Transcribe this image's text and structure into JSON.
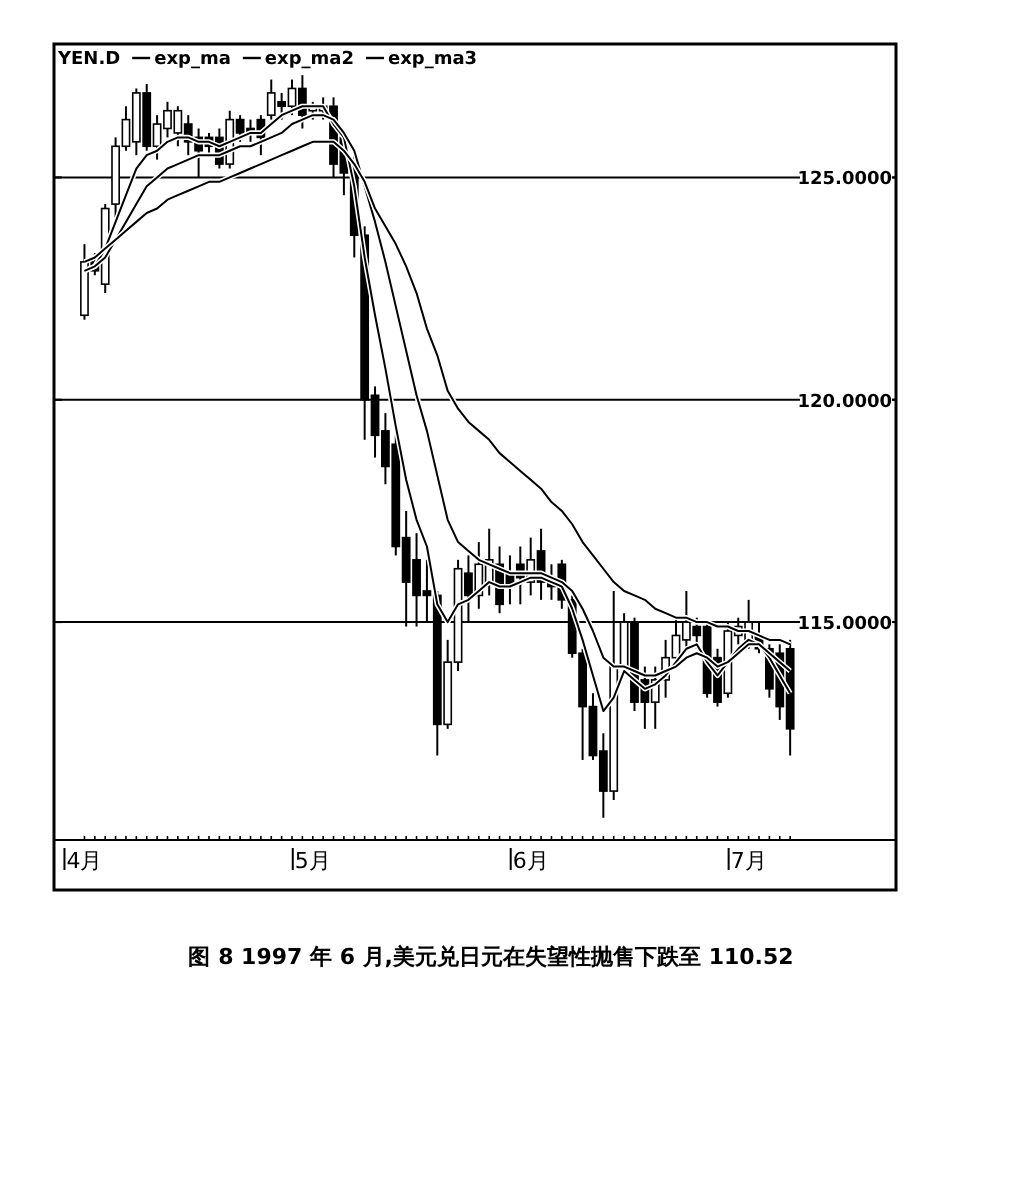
{
  "chart_data": {
    "type": "candlestick",
    "title": "YEN.D",
    "categories": [
      "4月",
      null,
      null,
      null,
      null,
      null,
      null,
      null,
      null,
      null,
      null,
      null,
      null,
      null,
      null,
      null,
      null,
      null,
      null,
      null,
      null,
      null,
      "5月",
      null,
      null,
      null,
      null,
      null,
      null,
      null,
      null,
      null,
      null,
      null,
      null,
      null,
      null,
      null,
      null,
      null,
      null,
      null,
      null,
      "6月",
      null,
      null,
      null,
      null,
      null,
      null,
      null,
      null,
      null,
      null,
      null,
      null,
      null,
      null,
      null,
      null,
      null,
      null,
      null,
      null,
      "7月",
      null,
      null,
      null,
      null
    ],
    "ohlc": [
      [
        121.9,
        123.5,
        121.8,
        123.1
      ],
      [
        123.1,
        123.3,
        122.8,
        122.9
      ],
      [
        122.6,
        124.4,
        122.4,
        124.3
      ],
      [
        124.4,
        125.9,
        124.1,
        125.7
      ],
      [
        125.7,
        126.6,
        125.6,
        126.3
      ],
      [
        125.8,
        127.0,
        125.5,
        126.9
      ],
      [
        126.9,
        127.1,
        125.6,
        125.7
      ],
      [
        125.7,
        126.4,
        125.4,
        126.2
      ],
      [
        126.1,
        126.7,
        125.9,
        126.5
      ],
      [
        126.0,
        126.6,
        125.7,
        126.5
      ],
      [
        126.2,
        126.4,
        125.5,
        125.8
      ],
      [
        125.9,
        126.1,
        125.0,
        125.6
      ],
      [
        125.9,
        126.0,
        125.5,
        125.7
      ],
      [
        125.9,
        126.1,
        125.2,
        125.3
      ],
      [
        125.3,
        126.5,
        125.2,
        126.3
      ],
      [
        126.3,
        126.4,
        125.8,
        126.0
      ],
      [
        126.1,
        126.3,
        125.8,
        126.0
      ],
      [
        126.3,
        126.4,
        125.5,
        125.9
      ],
      [
        126.4,
        127.2,
        126.3,
        126.9
      ],
      [
        126.7,
        126.9,
        126.3,
        126.6
      ],
      [
        126.6,
        127.2,
        126.4,
        127.0
      ],
      [
        127.0,
        127.3,
        126.1,
        126.4
      ],
      [
        126.5,
        126.7,
        126.3,
        126.6
      ],
      [
        126.5,
        126.8,
        126.3,
        126.6
      ],
      [
        126.6,
        126.8,
        125.0,
        125.3
      ],
      [
        125.9,
        126.0,
        124.6,
        125.1
      ],
      [
        125.3,
        125.5,
        123.2,
        123.7
      ],
      [
        123.7,
        123.9,
        119.1,
        120.0
      ],
      [
        120.1,
        120.3,
        118.7,
        119.2
      ],
      [
        119.3,
        119.7,
        118.1,
        118.5
      ],
      [
        119.0,
        119.2,
        116.5,
        116.7
      ],
      [
        116.9,
        117.5,
        114.9,
        115.9
      ],
      [
        116.4,
        117.0,
        114.9,
        115.6
      ],
      [
        115.7,
        116.4,
        115.0,
        115.6
      ],
      [
        115.6,
        115.7,
        112.0,
        112.7
      ],
      [
        112.7,
        114.6,
        112.6,
        114.1
      ],
      [
        114.1,
        116.4,
        113.9,
        116.2
      ],
      [
        116.1,
        116.5,
        115.0,
        115.6
      ],
      [
        115.6,
        116.8,
        115.3,
        116.3
      ],
      [
        115.9,
        117.1,
        115.6,
        116.4
      ],
      [
        116.3,
        116.7,
        115.2,
        115.4
      ],
      [
        116.1,
        116.5,
        115.4,
        115.8
      ],
      [
        116.3,
        116.7,
        115.4,
        116.0
      ],
      [
        115.9,
        116.9,
        115.6,
        116.4
      ],
      [
        116.6,
        117.1,
        115.5,
        115.9
      ],
      [
        116.0,
        116.3,
        115.5,
        115.8
      ],
      [
        116.3,
        116.4,
        115.3,
        115.5
      ],
      [
        115.5,
        115.6,
        114.2,
        114.3
      ],
      [
        114.3,
        114.4,
        111.9,
        113.1
      ],
      [
        113.1,
        113.4,
        111.9,
        112.0
      ],
      [
        112.1,
        112.5,
        110.6,
        111.2
      ],
      [
        111.2,
        115.7,
        111.0,
        114.0
      ],
      [
        114.0,
        115.2,
        113.9,
        115.0
      ],
      [
        115.0,
        115.1,
        113.0,
        113.2
      ],
      [
        113.7,
        114.0,
        112.6,
        113.2
      ],
      [
        113.2,
        114.0,
        112.6,
        113.7
      ],
      [
        113.7,
        114.6,
        113.3,
        114.2
      ],
      [
        114.2,
        115.1,
        114.0,
        114.7
      ],
      [
        114.6,
        115.7,
        114.4,
        115.0
      ],
      [
        114.9,
        115.1,
        114.4,
        114.7
      ],
      [
        114.9,
        115.0,
        113.3,
        113.4
      ],
      [
        114.2,
        114.4,
        113.1,
        113.2
      ],
      [
        113.4,
        115.0,
        113.3,
        114.8
      ],
      [
        114.7,
        115.1,
        114.5,
        114.9
      ],
      [
        114.6,
        115.5,
        114.4,
        115.0
      ],
      [
        114.7,
        115.0,
        114.3,
        114.4
      ],
      [
        114.4,
        114.5,
        113.3,
        113.5
      ],
      [
        114.3,
        114.5,
        112.8,
        113.1
      ],
      [
        114.4,
        114.6,
        112.0,
        112.6
      ]
    ],
    "series": [
      {
        "name": "exp_ma",
        "type": "line",
        "color": "#000000",
        "values": [
          122.9,
          123.0,
          123.4,
          124.0,
          124.6,
          125.2,
          125.5,
          125.6,
          125.8,
          125.9,
          125.9,
          125.8,
          125.8,
          125.7,
          125.8,
          125.9,
          126.0,
          126.0,
          126.2,
          126.4,
          126.5,
          126.6,
          126.6,
          126.6,
          126.2,
          125.9,
          124.8,
          123.2,
          121.9,
          120.7,
          119.4,
          118.2,
          117.3,
          116.7,
          115.4,
          115.0,
          115.4,
          115.5,
          115.7,
          115.9,
          115.8,
          115.8,
          115.9,
          116.0,
          116.0,
          115.9,
          115.8,
          115.3,
          114.6,
          113.8,
          113.0,
          113.3,
          113.9,
          113.7,
          113.5,
          113.6,
          113.8,
          114.1,
          114.4,
          114.5,
          114.1,
          113.8,
          114.1,
          114.4,
          114.6,
          114.5,
          114.2,
          113.8,
          113.4
        ]
      },
      {
        "name": "exp_ma2",
        "type": "line",
        "color": "#000000",
        "values": [
          122.9,
          123.0,
          123.2,
          123.6,
          124.0,
          124.4,
          124.8,
          125.0,
          125.2,
          125.3,
          125.4,
          125.5,
          125.5,
          125.5,
          125.6,
          125.7,
          125.7,
          125.8,
          125.9,
          126.0,
          126.2,
          126.3,
          126.4,
          126.4,
          126.3,
          126.0,
          125.6,
          124.8,
          124.0,
          123.1,
          122.1,
          121.1,
          120.1,
          119.3,
          118.3,
          117.3,
          116.8,
          116.6,
          116.4,
          116.3,
          116.2,
          116.1,
          116.1,
          116.1,
          116.1,
          116.0,
          115.9,
          115.7,
          115.3,
          114.8,
          114.2,
          114.0,
          114.0,
          113.9,
          113.8,
          113.8,
          113.9,
          114.0,
          114.2,
          114.3,
          114.2,
          114.0,
          114.1,
          114.3,
          114.5,
          114.5,
          114.3,
          114.1,
          113.9
        ]
      },
      {
        "name": "exp_ma3",
        "type": "line",
        "color": "#000000",
        "values": [
          123.1,
          123.2,
          123.4,
          123.6,
          123.8,
          124.0,
          124.2,
          124.3,
          124.5,
          124.6,
          124.7,
          124.8,
          124.9,
          124.9,
          125.0,
          125.1,
          125.2,
          125.3,
          125.4,
          125.5,
          125.6,
          125.7,
          125.8,
          125.8,
          125.8,
          125.6,
          125.3,
          124.9,
          124.3,
          123.9,
          123.5,
          123.0,
          122.4,
          121.6,
          121.0,
          120.2,
          119.8,
          119.5,
          119.3,
          119.1,
          118.8,
          118.6,
          118.4,
          118.2,
          118.0,
          117.7,
          117.5,
          117.2,
          116.8,
          116.5,
          116.2,
          115.9,
          115.7,
          115.6,
          115.5,
          115.3,
          115.2,
          115.1,
          115.1,
          115.0,
          115.0,
          114.9,
          114.9,
          114.8,
          114.8,
          114.7,
          114.6,
          114.6,
          114.5
        ]
      }
    ],
    "ylim": [
      110.1,
      128.0
    ],
    "yticks": [
      {
        "value": 115,
        "label": "115.0000"
      },
      {
        "value": 120,
        "label": "120.0000"
      },
      {
        "value": 125,
        "label": "125.0000"
      }
    ],
    "grid": "y",
    "legend": "top left",
    "annotations": [
      "图 8   1997 年 6 月,美元兑日元在失望性抛售下跌至 110.52"
    ]
  }
}
